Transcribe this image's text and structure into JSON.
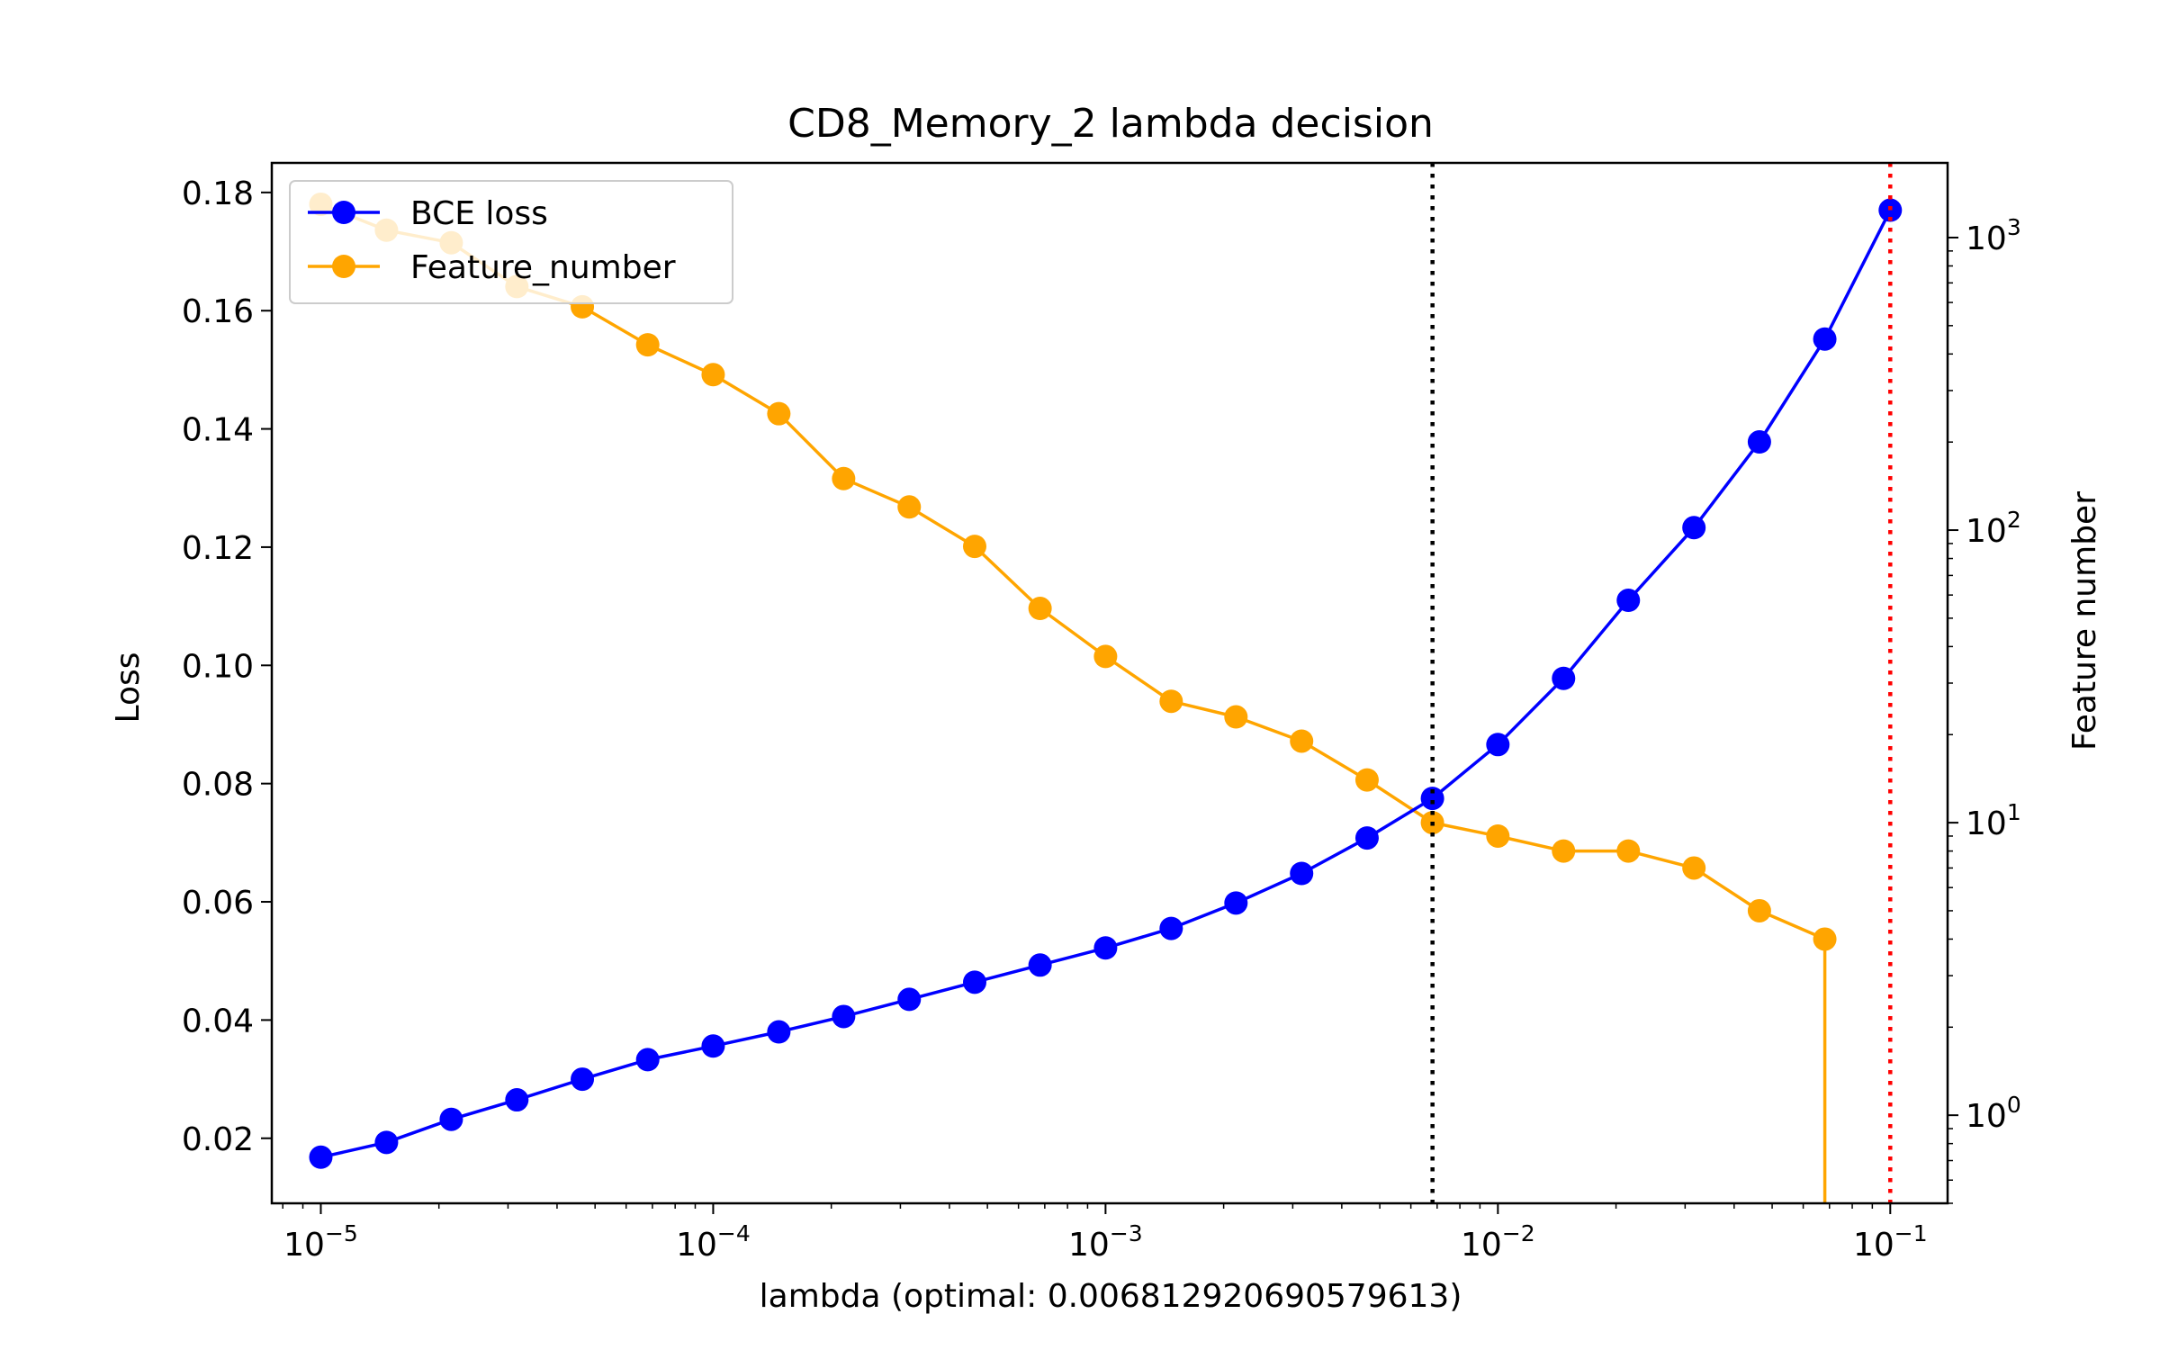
{
  "chart_data": {
    "type": "line",
    "title": "CD8_Memory_2 lambda decision",
    "xlabel": "lambda (optimal: 0.006812920690579613)",
    "ylabel_left": "Loss",
    "ylabel_right": "Feature number",
    "x_scale": "log",
    "x_range": [
      7.5e-06,
      0.14
    ],
    "y_left_range": [
      0.009,
      0.185
    ],
    "y_right_scale": "log",
    "y_right_range": [
      0.5,
      1800
    ],
    "x_ticks": [
      {
        "value": 1e-05,
        "base": "10",
        "exp": "−5"
      },
      {
        "value": 0.0001,
        "base": "10",
        "exp": "−4"
      },
      {
        "value": 0.001,
        "base": "10",
        "exp": "−3"
      },
      {
        "value": 0.01,
        "base": "10",
        "exp": "−2"
      },
      {
        "value": 0.1,
        "base": "10",
        "exp": "−1"
      }
    ],
    "y_left_ticks": [
      "0.02",
      "0.04",
      "0.06",
      "0.08",
      "0.10",
      "0.12",
      "0.14",
      "0.16",
      "0.18"
    ],
    "y_right_ticks": [
      {
        "value": 1,
        "base": "10",
        "exp": "0"
      },
      {
        "value": 10,
        "base": "10",
        "exp": "1"
      },
      {
        "value": 100,
        "base": "10",
        "exp": "2"
      },
      {
        "value": 1000,
        "base": "10",
        "exp": "3"
      }
    ],
    "x": [
      1e-05,
      1.47e-05,
      2.15e-05,
      3.16e-05,
      4.64e-05,
      6.81e-05,
      0.0001,
      0.000147,
      0.000215,
      0.000316,
      0.000464,
      0.000681,
      0.001,
      0.00147,
      0.00215,
      0.00316,
      0.00464,
      0.00681,
      0.01,
      0.0147,
      0.0215,
      0.0316,
      0.0464,
      0.0681,
      0.1
    ],
    "series": [
      {
        "name": "BCE loss",
        "axis": "left",
        "color": "#0000ff",
        "values": [
          0.0168,
          0.0193,
          0.0232,
          0.0265,
          0.03,
          0.0333,
          0.0356,
          0.038,
          0.0406,
          0.0435,
          0.0464,
          0.0493,
          0.0522,
          0.0555,
          0.0598,
          0.0648,
          0.0708,
          0.0775,
          0.0866,
          0.0978,
          0.111,
          0.1233,
          0.1378,
          0.1552,
          0.177
        ]
      },
      {
        "name": "Feature_number",
        "axis": "right",
        "color": "#ffa500",
        "values": [
          1300,
          1060,
          960,
          680,
          580,
          430,
          340,
          250,
          150,
          120,
          88,
          54,
          37,
          26,
          23,
          19,
          14,
          10,
          9,
          8,
          8,
          7,
          5,
          4,
          null
        ]
      }
    ],
    "feature_drop_to_zero_at": 0.0681,
    "vlines": [
      {
        "x": 0.006812920690579613,
        "color": "#000000",
        "style": "dotted"
      },
      {
        "x": 0.1,
        "color": "#ff0000",
        "style": "dotted"
      }
    ],
    "legend_position": "top-left",
    "grid": false
  }
}
